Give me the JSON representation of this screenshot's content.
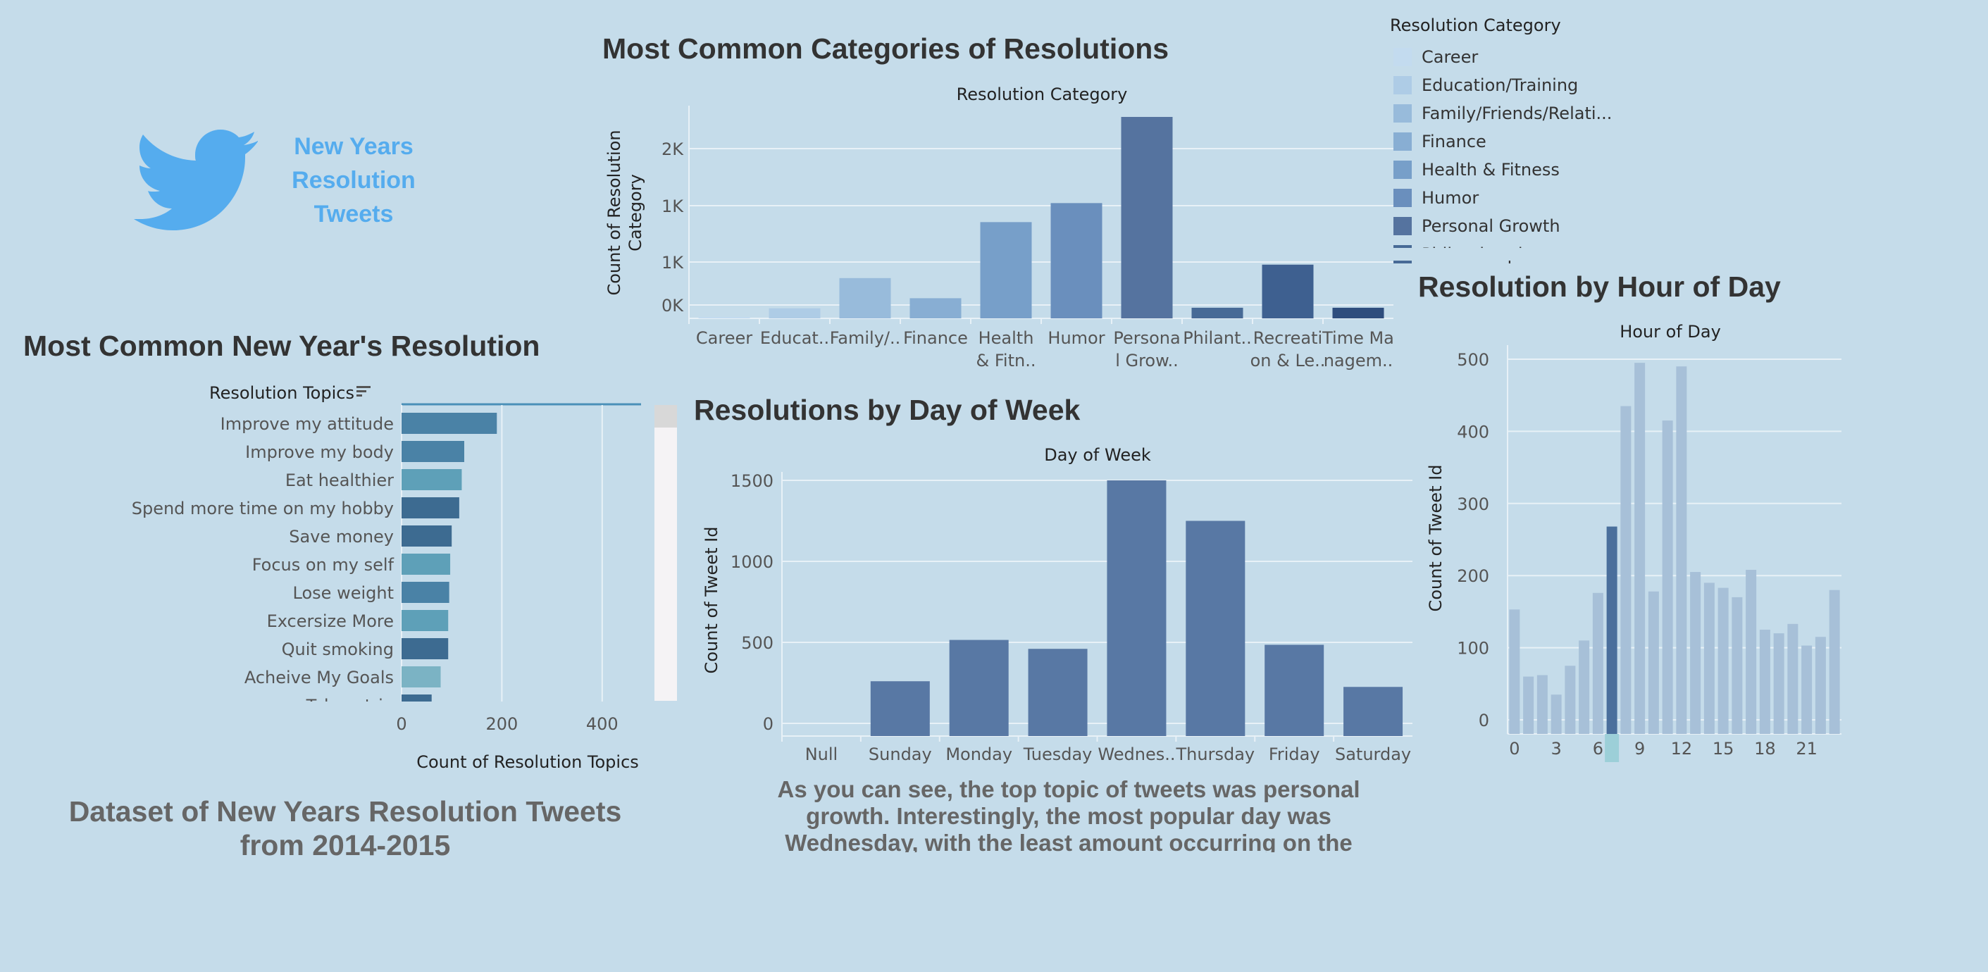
{
  "logo": {
    "text_lines": [
      "New Years",
      "Resolution",
      "Tweets"
    ],
    "icon": "twitter-bird-icon",
    "color": "#55acee"
  },
  "headings": {
    "categories": "Most Common Categories of Resolutions",
    "topics": "Most Common New Year's Resolution",
    "weekday": "Resolutions by Day of Week",
    "hour": "Resolution by Hour of Day"
  },
  "footer": {
    "dataset_line1": "Dataset of New Years Resolution Tweets",
    "dataset_line2": "from 2014-2015",
    "note_lines": [
      "As you can see, the top topic of tweets was personal",
      "growth. Interestingly, the most popular day was",
      "Wednesday, with the least amount occurring on the"
    ]
  },
  "legend": {
    "title": "Resolution Category",
    "items": [
      {
        "label": "Career",
        "color": "#c3dbef"
      },
      {
        "label": "Education/Training",
        "color": "#aecce6"
      },
      {
        "label": "Family/Friends/Relati...",
        "color": "#98bbdb"
      },
      {
        "label": "Finance",
        "color": "#88aed3"
      },
      {
        "label": "Health & Fitness",
        "color": "#779fc9"
      },
      {
        "label": "Humor",
        "color": "#6a8fbd"
      },
      {
        "label": "Personal Growth",
        "color": "#55739f"
      },
      {
        "label": "Philanthropic",
        "color": "#476a96"
      }
    ]
  },
  "chart_data": [
    {
      "id": "categories",
      "type": "bar",
      "title": "Resolution Category",
      "ylabel": "Count of Resolution Category",
      "ylabel_lines": [
        "Count of Resolution",
        "Category"
      ],
      "ytick_labels": [
        "0K",
        "1K",
        "1K",
        "2K"
      ],
      "ylim": [
        0,
        1800
      ],
      "categories": [
        "Career",
        "Educat..",
        "Family/..",
        "Finance",
        "Health & Fitn..",
        "Humor",
        "Persona l Grow..",
        "Philant..",
        "Recreati on & Le..",
        "Time Ma nagem.."
      ],
      "category_lines": [
        [
          "Career"
        ],
        [
          "Educat.."
        ],
        [
          "Family/.."
        ],
        [
          "Finance"
        ],
        [
          "Health",
          "& Fitn.."
        ],
        [
          "Humor"
        ],
        [
          "Persona",
          "l Grow.."
        ],
        [
          "Philant.."
        ],
        [
          "Recreati",
          "on & Le.."
        ],
        [
          "Time Ma",
          "nagem.."
        ]
      ],
      "values": [
        10,
        90,
        360,
        180,
        860,
        1030,
        1800,
        95,
        480,
        95
      ],
      "colors": [
        "#c3dbef",
        "#aecce6",
        "#98bbdb",
        "#88aed3",
        "#779fc9",
        "#6a8fbd",
        "#55739f",
        "#476a96",
        "#3e6090",
        "#2e4d7d"
      ]
    },
    {
      "id": "topics",
      "type": "bar",
      "orientation": "horizontal",
      "title": "Resolution Topics",
      "xlabel": "Count of Resolution Topics",
      "xticks": [
        0,
        200,
        400
      ],
      "xlim": [
        0,
        500
      ],
      "categories": [
        "Improve my attitude",
        "Improve my body",
        "Eat healthier",
        "Spend more time on my hobby",
        "Save money",
        "Focus on my self",
        "Lose weight",
        "Excersize More",
        "Quit smoking",
        "Acheive My Goals",
        "Take a trip"
      ],
      "values": [
        190,
        125,
        120,
        115,
        100,
        97,
        95,
        93,
        93,
        78,
        60
      ],
      "colors": [
        "#4a82a6",
        "#4a82a6",
        "#5ea0b8",
        "#3d6b91",
        "#3d6b91",
        "#5ea0b8",
        "#4a82a6",
        "#5ea0b8",
        "#3d6b91",
        "#7bb3c4",
        "#3d6b91"
      ]
    },
    {
      "id": "weekday",
      "type": "bar",
      "title": "Day of Week",
      "ylabel": "Count of Tweet Id",
      "yticks": [
        0,
        500,
        1000,
        1500
      ],
      "ylim": [
        0,
        1500
      ],
      "categories": [
        "Null",
        "Sunday",
        "Monday",
        "Tuesday",
        "Wednes..",
        "Thursday",
        "Friday",
        "Saturday"
      ],
      "values": [
        0,
        260,
        515,
        460,
        1500,
        1250,
        485,
        225
      ],
      "color": "#5878a4"
    },
    {
      "id": "hour",
      "type": "bar",
      "title": "Hour of Day",
      "ylabel": "Count of Tweet Id",
      "yticks": [
        0,
        100,
        200,
        300,
        400,
        500
      ],
      "ylim": [
        0,
        520
      ],
      "x": [
        0,
        1,
        2,
        3,
        4,
        5,
        6,
        7,
        8,
        9,
        10,
        11,
        12,
        13,
        14,
        15,
        16,
        17,
        18,
        19,
        20,
        21,
        22,
        23
      ],
      "xtick_labels": [
        "0",
        "3",
        "6",
        "9",
        "12",
        "15",
        "18",
        "21"
      ],
      "values": [
        153,
        60,
        62,
        35,
        75,
        110,
        176,
        268,
        435,
        495,
        178,
        415,
        490,
        205,
        190,
        183,
        170,
        208,
        125,
        120,
        133,
        103,
        115,
        180
      ],
      "highlight_index": 7,
      "color": "#a7c0d8",
      "highlight_color": "#4a6f9c",
      "axis_marker_color": "#9ccfd8"
    }
  ]
}
